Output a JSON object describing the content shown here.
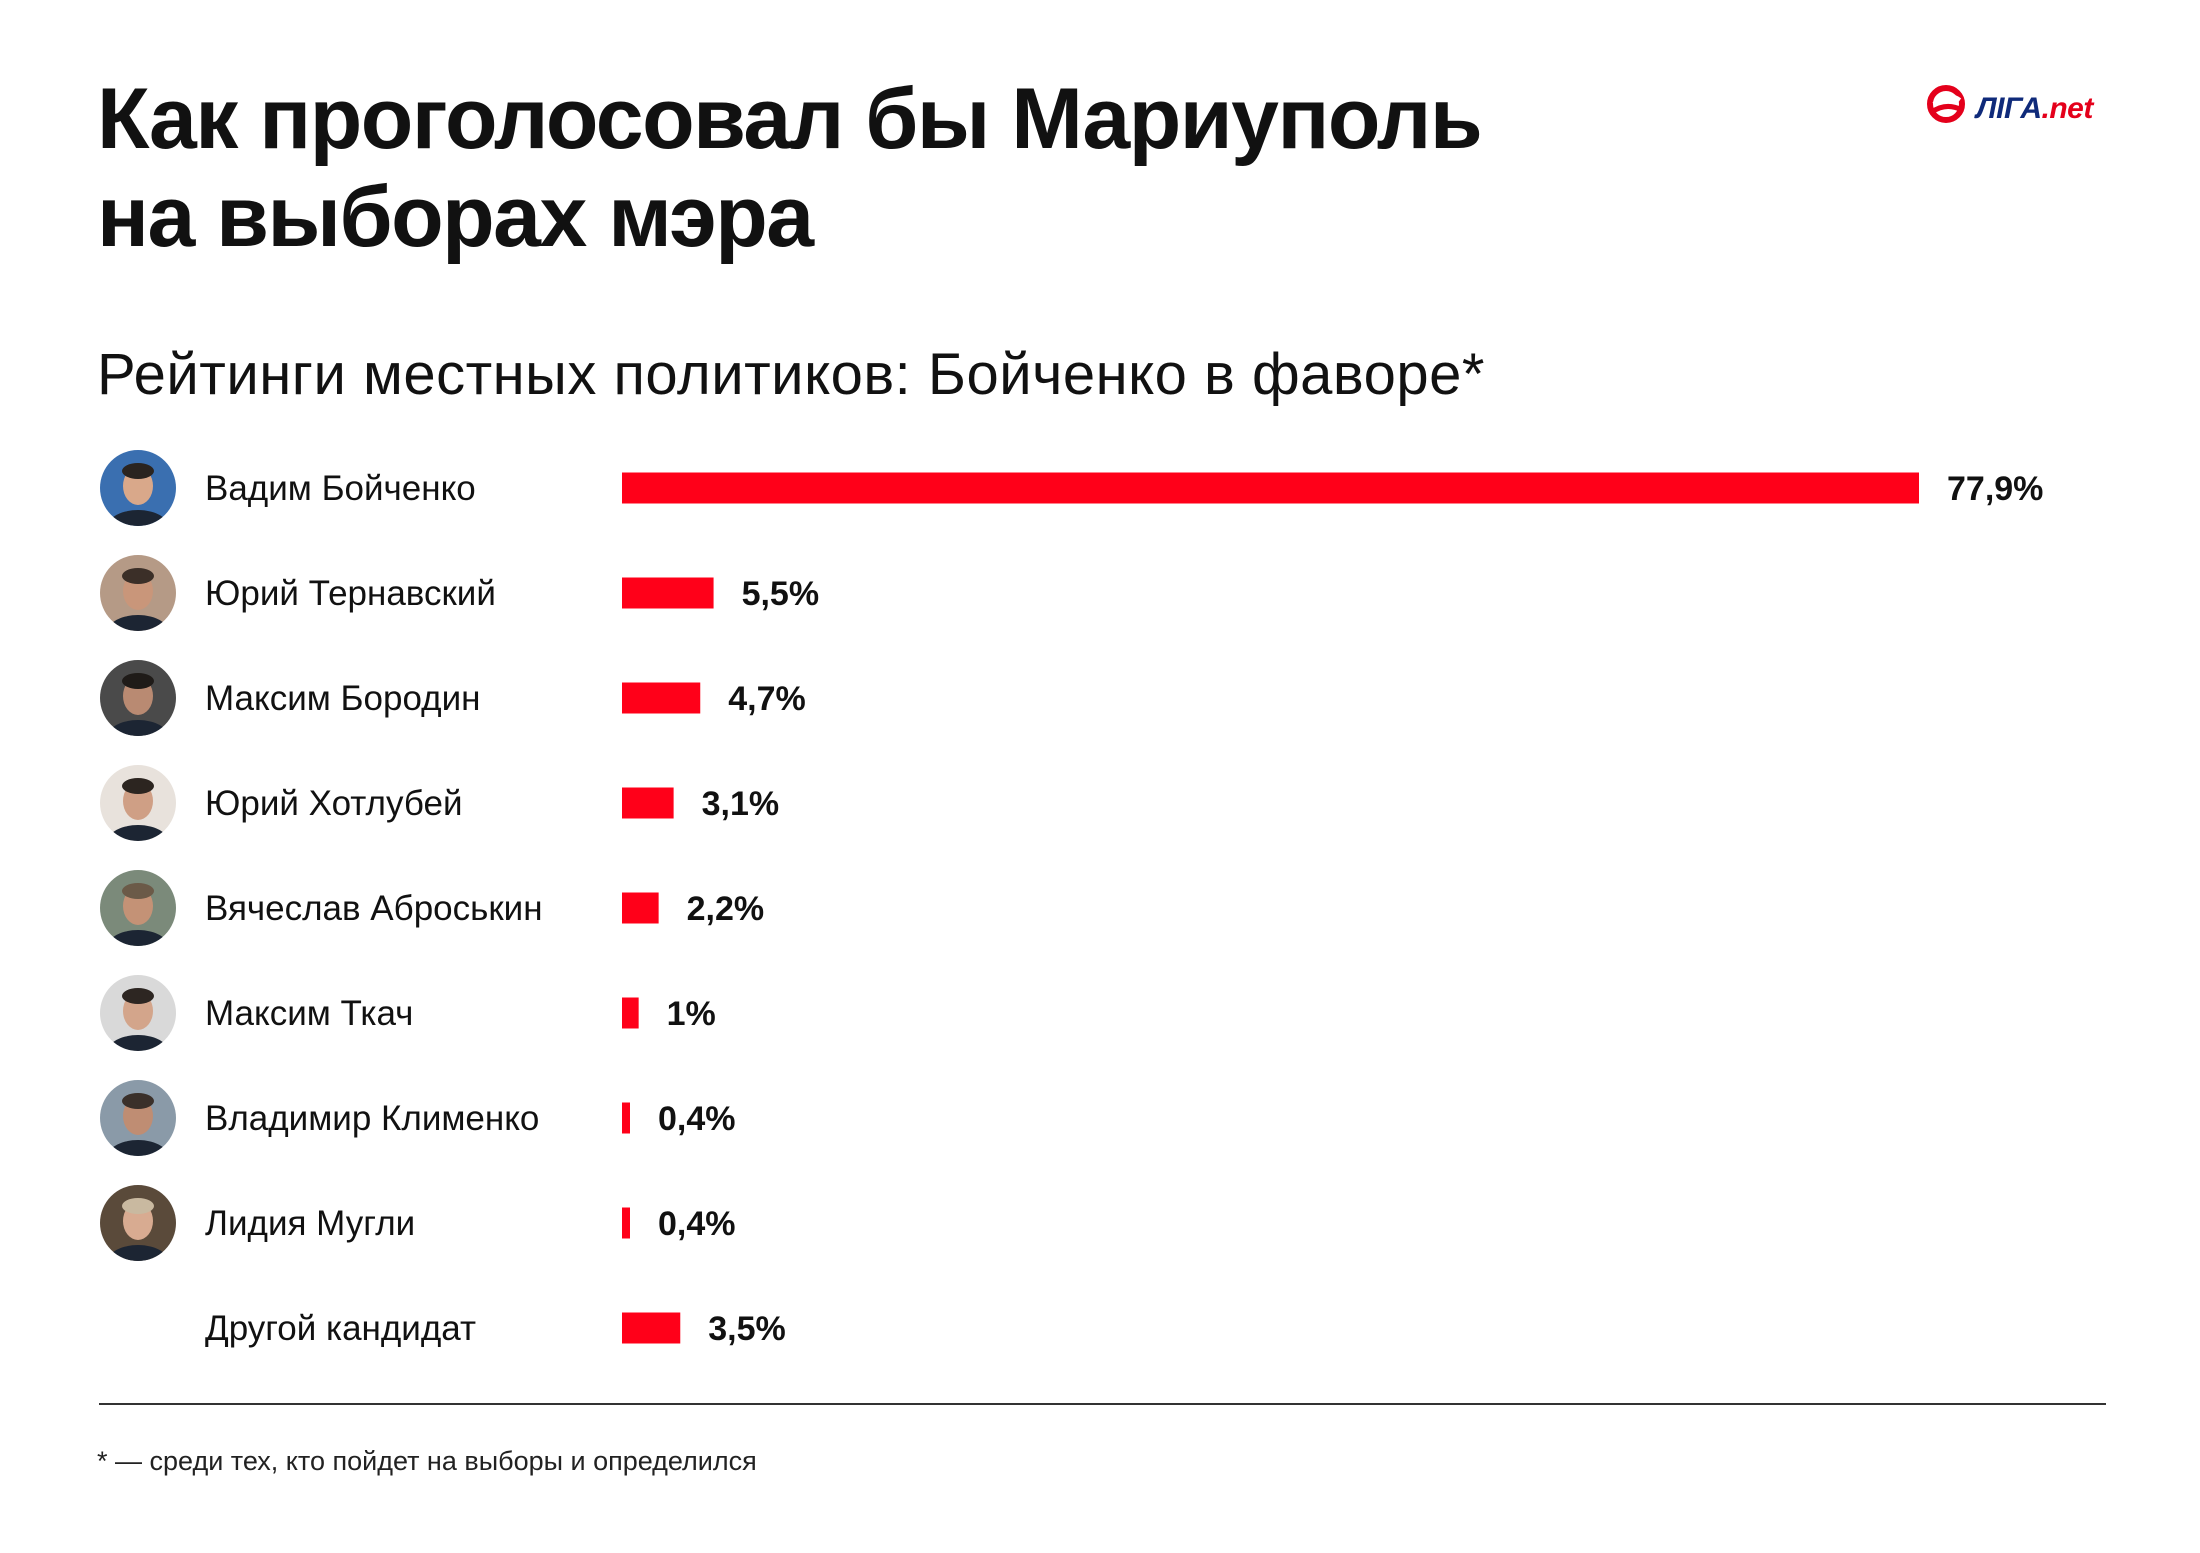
{
  "header": {
    "title_line1": "Как проголосовал бы Мариуполь",
    "title_line2": "на выборах мэра",
    "logo_text": "ЛІГА",
    "logo_dot": ".",
    "logo_net": "net"
  },
  "chart_data": {
    "type": "bar",
    "orientation": "horizontal",
    "title": "Рейтинги местных политиков: Бойченко в фаворе*",
    "categories": [
      "Вадим Бойченко",
      "Юрий Тернавский",
      "Максим Бородин",
      "Юрий Хотлубей",
      "Вячеслав Аброськин",
      "Максим Ткач",
      "Владимир Клименко",
      "Лидия Мугли",
      "Другой кандидат"
    ],
    "values": [
      77.9,
      5.5,
      4.7,
      3.1,
      2.2,
      1,
      0.4,
      0.4,
      3.5
    ],
    "value_labels": [
      "77,9%",
      "5,5%",
      "4,7%",
      "3,1%",
      "2,2%",
      "1%",
      "0,4%",
      "0,4%",
      "3,5%"
    ],
    "has_photo": [
      true,
      true,
      true,
      true,
      true,
      true,
      true,
      true,
      false
    ],
    "bar_color": "#ff0019",
    "unit": "%",
    "grid": false,
    "legend": "none",
    "xlim": [
      0,
      77.9
    ]
  },
  "footnote": "* — среди тех, кто пойдет на выборы и определился",
  "colors": {
    "accent": "#ff0019",
    "text": "#111111",
    "logo_blue": "#0f2a7a"
  }
}
